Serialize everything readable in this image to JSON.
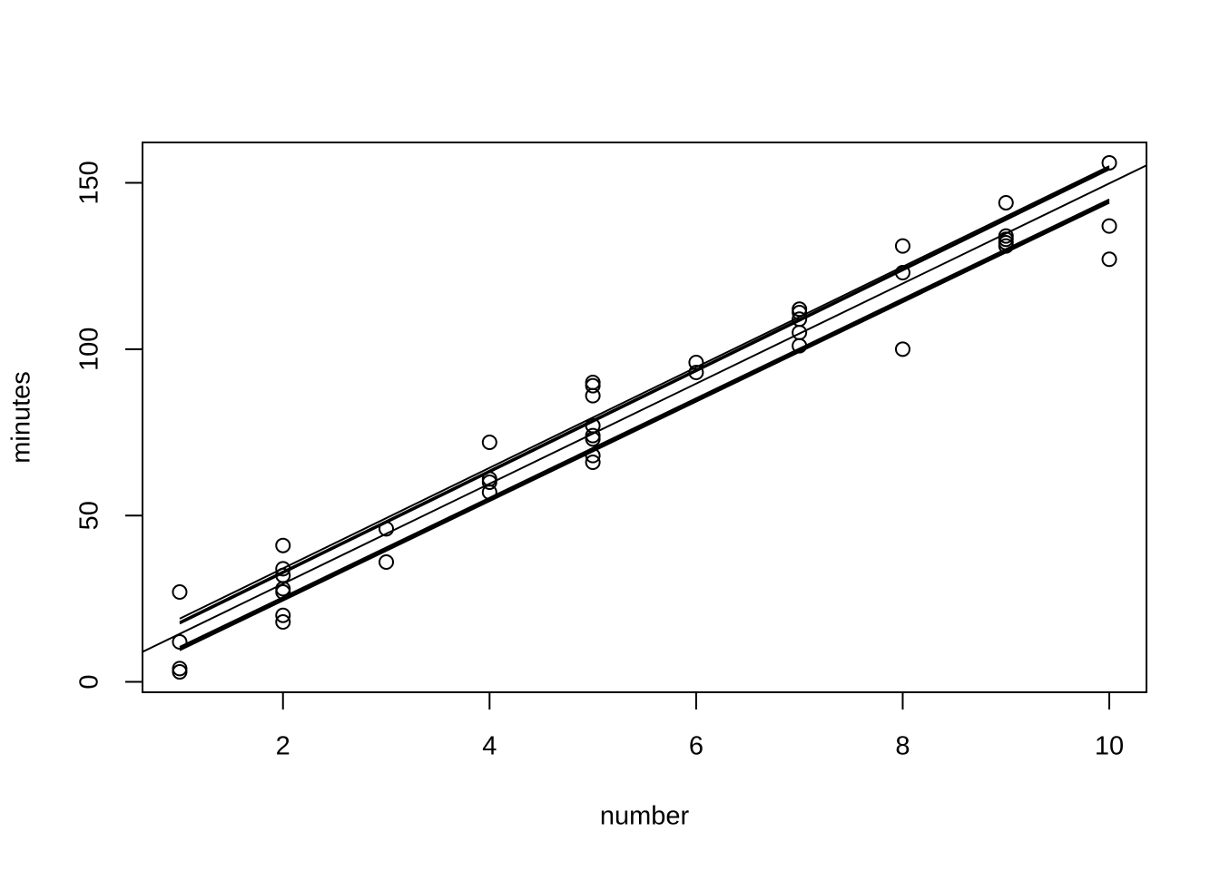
{
  "chart_data": {
    "type": "scatter",
    "xlabel": "number",
    "ylabel": "minutes",
    "x": [
      1,
      1,
      1,
      1,
      2,
      2,
      2,
      2,
      2,
      2,
      2,
      3,
      3,
      4,
      4,
      4,
      4,
      5,
      5,
      5,
      5,
      5,
      5,
      5,
      5,
      6,
      6,
      7,
      7,
      7,
      7,
      7,
      8,
      8,
      8,
      9,
      9,
      9,
      9,
      9,
      10,
      10,
      10
    ],
    "values": [
      27,
      12,
      4,
      3,
      41,
      34,
      32,
      28,
      27,
      20,
      18,
      46,
      36,
      72,
      61,
      60,
      57,
      90,
      89,
      86,
      77,
      74,
      73,
      68,
      66,
      96,
      93,
      112,
      111,
      109,
      105,
      101,
      131,
      123,
      100,
      144,
      134,
      133,
      132,
      131,
      156,
      137,
      127
    ],
    "color": "#000000",
    "fit": {
      "intercept": -0.6,
      "slope": 15.04
    },
    "segments": [
      {
        "x": [
          1,
          10
        ],
        "y": [
          19,
          155
        ]
      },
      {
        "x": [
          1,
          10
        ],
        "y": [
          18,
          154.5
        ]
      },
      {
        "x": [
          1,
          10
        ],
        "y": [
          17.5,
          154
        ]
      },
      {
        "x": [
          1,
          10
        ],
        "y": [
          10.5,
          145
        ]
      },
      {
        "x": [
          1,
          10
        ],
        "y": [
          10,
          144.5
        ]
      },
      {
        "x": [
          1,
          10
        ],
        "y": [
          9.5,
          144
        ]
      }
    ],
    "xlim": [
      0.64,
      10.36
    ],
    "ylim": [
      -3.12,
      162.12
    ],
    "xticks": [
      2,
      4,
      6,
      8,
      10
    ],
    "yticks": [
      0,
      50,
      100,
      150
    ]
  }
}
